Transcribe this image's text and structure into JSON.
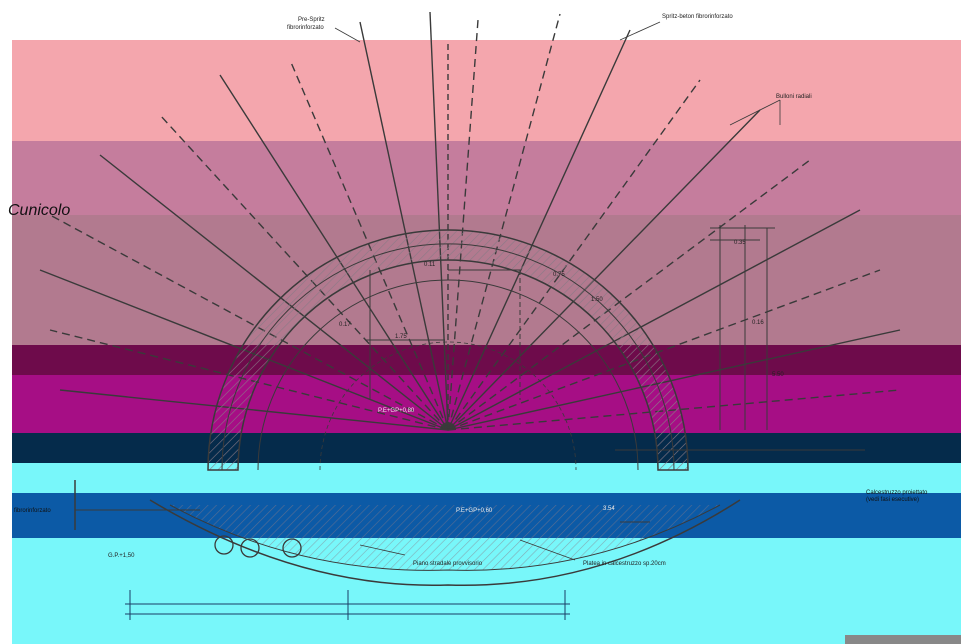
{
  "colors": {
    "band_pink": "#f4a6ad",
    "band_mauve": "#c57d9d",
    "band_rose": "#b27a8f",
    "band_maroon": "#6e0b4b",
    "band_magenta": "#a60e85",
    "band_navy": "#052b4b",
    "band_cyan": "#78f7fa",
    "band_blue": "#0c5aa6",
    "line_dark": "#3a3a3a",
    "hatch": "#8a7a86"
  },
  "labels": {
    "title": "Cunicolo",
    "pre_spritz": "Pre-Spritz",
    "pre_spritz_sub": "fibrorinforzato",
    "spritz_beton": "Spritz-beton fibrorinforzato",
    "bulloni": "Bulloni radiali",
    "calcestruzzo_1": "Calcestruzzo proiettato",
    "calcestruzzo_2": "(vedi fasi esecutive)",
    "left_fibro": "fibrorinforzato",
    "piano_stradale": "Piano stradale provvisorio",
    "platea": "Platea in calcestruzzo sp.20cm",
    "gp": "G.P.+1,50",
    "quota_1": "P.E+GP+0,80",
    "quota_2": "P.E+GP+0,60"
  },
  "dimensions": {
    "d_175": "1.75",
    "d_075": "0.75",
    "d_150": "1.50",
    "d_017": "0.17",
    "d_011": "0.11",
    "d_035": "0.35",
    "d_016": "0.16",
    "d_550": "5.50",
    "d_354": "3.54"
  }
}
